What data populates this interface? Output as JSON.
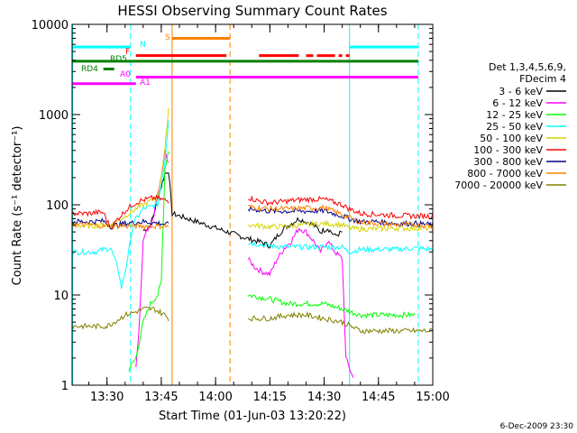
{
  "chart_data": {
    "type": "line",
    "title": "HESSI Observing Summary Count Rates",
    "xlabel": "Start Time (01-Jun-03 13:20:22)",
    "ylabel": "Count Rate (s⁻¹ detector⁻¹)",
    "yscale": "log",
    "ylim": [
      1,
      10000
    ],
    "xlim": [
      "13:20:22",
      "15:00:00"
    ],
    "xticks": [
      "13:30",
      "13:45",
      "14:00",
      "14:15",
      "14:30",
      "14:45",
      "15:00"
    ],
    "yticks": [
      "1",
      "10",
      "100",
      "1000",
      "10000"
    ],
    "legend_header": [
      "Det 1,3,4,5,6,9,",
      "FDecim 4"
    ],
    "legend_position": "right",
    "footer": "6-Dec-2009 23:30",
    "series": [
      {
        "name": "3 - 6 keV",
        "color": "#000000",
        "points": [
          [
            "13:39",
            null
          ],
          [
            "13:40",
            52
          ],
          [
            "13:41",
            55
          ],
          [
            "13:42",
            60
          ],
          [
            "13:43",
            80
          ],
          [
            "13:44",
            120
          ],
          [
            "13:45",
            160
          ],
          [
            "13:46",
            220
          ],
          [
            "13:47",
            240
          ],
          [
            "13:48",
            80
          ],
          [
            "14:09",
            42
          ],
          [
            "14:11",
            40
          ],
          [
            "14:13",
            38
          ],
          [
            "14:15",
            35
          ],
          [
            "14:17",
            45
          ],
          [
            "14:19",
            55
          ],
          [
            "14:21",
            62
          ],
          [
            "14:23",
            70
          ],
          [
            "14:25",
            65
          ],
          [
            "14:27",
            60
          ],
          [
            "14:29",
            50
          ],
          [
            "14:31",
            55
          ],
          [
            "14:33",
            45
          ],
          [
            "14:35",
            50
          ],
          [
            "14:37",
            null
          ]
        ]
      },
      {
        "name": "6 - 12 keV",
        "color": "#ff00ff",
        "points": [
          [
            "13:38",
            1.5
          ],
          [
            "13:39",
            5
          ],
          [
            "13:40",
            40
          ],
          [
            "13:41",
            50
          ],
          [
            "13:42",
            55
          ],
          [
            "13:43",
            80
          ],
          [
            "13:44",
            130
          ],
          [
            "13:45",
            200
          ],
          [
            "13:46",
            380
          ],
          [
            "13:47",
            300
          ],
          [
            "13:48",
            null
          ],
          [
            "14:09",
            25
          ],
          [
            "14:11",
            20
          ],
          [
            "14:13",
            18
          ],
          [
            "14:15",
            17
          ],
          [
            "14:17",
            25
          ],
          [
            "14:19",
            33
          ],
          [
            "14:21",
            40
          ],
          [
            "14:23",
            55
          ],
          [
            "14:25",
            50
          ],
          [
            "14:27",
            40
          ],
          [
            "14:29",
            30
          ],
          [
            "14:31",
            40
          ],
          [
            "14:33",
            30
          ],
          [
            "14:35",
            25
          ],
          [
            "14:36",
            2
          ],
          [
            "14:38",
            1.2
          ]
        ]
      },
      {
        "name": "12 - 25 keV",
        "color": "#00ff00",
        "points": [
          [
            "13:36",
            1.5
          ],
          [
            "13:38",
            2
          ],
          [
            "13:40",
            5
          ],
          [
            "13:42",
            8
          ],
          [
            "13:44",
            10
          ],
          [
            "13:45",
            14
          ],
          [
            "13:46",
            250
          ],
          [
            "13:47",
            400
          ],
          [
            "13:48",
            null
          ],
          [
            "14:09",
            10
          ],
          [
            "14:15",
            9
          ],
          [
            "14:20",
            8
          ],
          [
            "14:25",
            8
          ],
          [
            "14:30",
            8
          ],
          [
            "14:35",
            7
          ],
          [
            "14:40",
            6
          ],
          [
            "14:45",
            6
          ],
          [
            "14:50",
            6
          ],
          [
            "14:55",
            6
          ]
        ]
      },
      {
        "name": "25 - 50 keV",
        "color": "#00ffff",
        "points": [
          [
            "13:20",
            30
          ],
          [
            "13:27",
            30
          ],
          [
            "13:29",
            32
          ],
          [
            "13:31",
            33
          ],
          [
            "13:33",
            20
          ],
          [
            "13:34",
            12
          ],
          [
            "13:35",
            18
          ],
          [
            "13:36",
            30
          ],
          [
            "13:37",
            55
          ],
          [
            "13:38",
            70
          ],
          [
            "13:40",
            90
          ],
          [
            "13:42",
            95
          ],
          [
            "13:44",
            100
          ],
          [
            "13:46",
            300
          ],
          [
            "13:47",
            900
          ],
          [
            "13:48",
            null
          ],
          [
            "14:09",
            38
          ],
          [
            "14:15",
            35
          ],
          [
            "14:20",
            34
          ],
          [
            "14:25",
            34
          ],
          [
            "14:30",
            34
          ],
          [
            "14:35",
            34
          ],
          [
            "14:37",
            30
          ],
          [
            "14:40",
            32
          ],
          [
            "14:45",
            32
          ],
          [
            "14:50",
            32
          ],
          [
            "14:55",
            33
          ],
          [
            "15:00",
            32
          ]
        ]
      },
      {
        "name": "50 - 100 keV",
        "color": "#d4d400",
        "points": [
          [
            "13:20",
            60
          ],
          [
            "13:25",
            58
          ],
          [
            "13:30",
            60
          ],
          [
            "13:32",
            62
          ],
          [
            "13:34",
            70
          ],
          [
            "13:36",
            80
          ],
          [
            "13:38",
            90
          ],
          [
            "13:40",
            100
          ],
          [
            "13:42",
            110
          ],
          [
            "13:44",
            120
          ],
          [
            "13:46",
            400
          ],
          [
            "13:47",
            1200
          ],
          [
            "13:48",
            null
          ],
          [
            "14:09",
            60
          ],
          [
            "14:15",
            57
          ],
          [
            "14:20",
            58
          ],
          [
            "14:25",
            60
          ],
          [
            "14:30",
            62
          ],
          [
            "14:35",
            60
          ],
          [
            "14:37",
            55
          ],
          [
            "14:40",
            54
          ],
          [
            "14:45",
            54
          ],
          [
            "14:50",
            55
          ],
          [
            "14:55",
            55
          ],
          [
            "15:00",
            55
          ]
        ]
      },
      {
        "name": "100 - 300 keV",
        "color": "#ff0000",
        "points": [
          [
            "13:20",
            80
          ],
          [
            "13:25",
            80
          ],
          [
            "13:27",
            82
          ],
          [
            "13:29",
            82
          ],
          [
            "13:31",
            55
          ],
          [
            "13:33",
            70
          ],
          [
            "13:35",
            85
          ],
          [
            "13:37",
            100
          ],
          [
            "13:39",
            110
          ],
          [
            "13:41",
            115
          ],
          [
            "13:43",
            120
          ],
          [
            "13:45",
            115
          ],
          [
            "13:47",
            110
          ],
          [
            "13:48",
            null
          ],
          [
            "14:09",
            120
          ],
          [
            "14:12",
            110
          ],
          [
            "14:15",
            105
          ],
          [
            "14:20",
            110
          ],
          [
            "14:25",
            115
          ],
          [
            "14:30",
            115
          ],
          [
            "14:35",
            100
          ],
          [
            "14:37",
            90
          ],
          [
            "14:40",
            80
          ],
          [
            "14:45",
            78
          ],
          [
            "14:50",
            76
          ],
          [
            "14:55",
            75
          ],
          [
            "15:00",
            75
          ]
        ]
      },
      {
        "name": "300 - 800 keV",
        "color": "#00008b",
        "points": [
          [
            "13:20",
            65
          ],
          [
            "13:25",
            65
          ],
          [
            "13:29",
            66
          ],
          [
            "13:31",
            58
          ],
          [
            "13:33",
            60
          ],
          [
            "13:35",
            62
          ],
          [
            "13:40",
            65
          ],
          [
            "13:45",
            62
          ],
          [
            "13:47",
            60
          ],
          [
            "13:48",
            null
          ],
          [
            "14:09",
            90
          ],
          [
            "14:15",
            85
          ],
          [
            "14:20",
            85
          ],
          [
            "14:25",
            85
          ],
          [
            "14:30",
            86
          ],
          [
            "14:35",
            75
          ],
          [
            "14:37",
            70
          ],
          [
            "14:40",
            65
          ],
          [
            "14:45",
            65
          ],
          [
            "14:50",
            62
          ],
          [
            "14:55",
            62
          ],
          [
            "15:00",
            60
          ]
        ]
      },
      {
        "name": "800 - 7000 keV",
        "color": "#ff8000",
        "points": [
          [
            "13:20",
            60
          ],
          [
            "13:25",
            60
          ],
          [
            "13:30",
            58
          ],
          [
            "13:35",
            58
          ],
          [
            "13:40",
            58
          ],
          [
            "13:45",
            58
          ],
          [
            "13:47",
            58
          ],
          [
            "13:48",
            null
          ],
          [
            "14:09",
            95
          ],
          [
            "14:15",
            90
          ],
          [
            "14:20",
            90
          ],
          [
            "14:25",
            92
          ],
          [
            "14:30",
            93
          ],
          [
            "14:35",
            78
          ],
          [
            "14:37",
            72
          ],
          [
            "14:40",
            64
          ],
          [
            "14:45",
            62
          ],
          [
            "14:50",
            60
          ],
          [
            "14:55",
            60
          ],
          [
            "15:00",
            58
          ]
        ]
      },
      {
        "name": "7000 - 20000 keV",
        "color": "#808000",
        "points": [
          [
            "13:20",
            4.5
          ],
          [
            "13:25",
            4.5
          ],
          [
            "13:30",
            4.5
          ],
          [
            "13:32",
            5
          ],
          [
            "13:35",
            6
          ],
          [
            "13:38",
            6.5
          ],
          [
            "13:40",
            7
          ],
          [
            "13:43",
            7
          ],
          [
            "13:46",
            6
          ],
          [
            "13:47",
            5.5
          ],
          [
            "13:48",
            null
          ],
          [
            "14:09",
            5.5
          ],
          [
            "14:15",
            5.5
          ],
          [
            "14:20",
            6
          ],
          [
            "14:25",
            6
          ],
          [
            "14:30",
            5.5
          ],
          [
            "14:35",
            5
          ],
          [
            "14:40",
            4
          ],
          [
            "14:45",
            4
          ],
          [
            "14:50",
            4
          ],
          [
            "14:55",
            4
          ],
          [
            "15:00",
            4
          ]
        ]
      }
    ],
    "vlines": [
      {
        "time": "13:20:30",
        "color": "#00ffff",
        "style": "solid"
      },
      {
        "time": "13:36:30",
        "color": "#00ffff",
        "style": "dashed"
      },
      {
        "time": "13:48:00",
        "color": "#ff8000",
        "style": "solid"
      },
      {
        "time": "14:04:00",
        "color": "#ff8000",
        "style": "dashed"
      },
      {
        "time": "14:37:00",
        "color": "#00ffff",
        "style": "solid"
      },
      {
        "time": "14:56:00",
        "color": "#00ffff",
        "style": "dashed"
      }
    ],
    "flag_bars": [
      {
        "label": "N",
        "color": "#00ffff",
        "value": 5600,
        "segments": [
          [
            "13:20:30",
            "13:36:30"
          ],
          [
            "14:37",
            "14:56"
          ]
        ]
      },
      {
        "label": "S",
        "color": "#ff8000",
        "value": 7000,
        "segments": [
          [
            "13:48",
            "14:04"
          ]
        ]
      },
      {
        "label": "F",
        "color": "#ff0000",
        "value": 4500,
        "segments": [
          [
            "13:38",
            "14:03"
          ],
          [
            "14:12",
            "14:23"
          ],
          [
            "14:25",
            "14:27"
          ],
          [
            "14:28",
            "14:31"
          ],
          [
            "14:31",
            "14:33"
          ],
          [
            "14:34",
            "14:35"
          ],
          [
            "14:36",
            "14:37"
          ]
        ]
      },
      {
        "label": "RD5",
        "color": "#008000",
        "value": 3900,
        "segments": [
          [
            "13:20:22",
            "14:56"
          ]
        ]
      },
      {
        "label": "RD4",
        "color": "#008000",
        "value": 3200,
        "segments": [
          [
            "13:29",
            "13:32"
          ]
        ]
      },
      {
        "label": "A0",
        "color": "#ff00ff",
        "value": 2600,
        "segments": [
          [
            "13:38",
            "14:56"
          ]
        ]
      },
      {
        "label": "A1",
        "color": "#ff00ff",
        "value": 2200,
        "segments": [
          [
            "13:20:22",
            "13:38"
          ]
        ]
      }
    ]
  }
}
